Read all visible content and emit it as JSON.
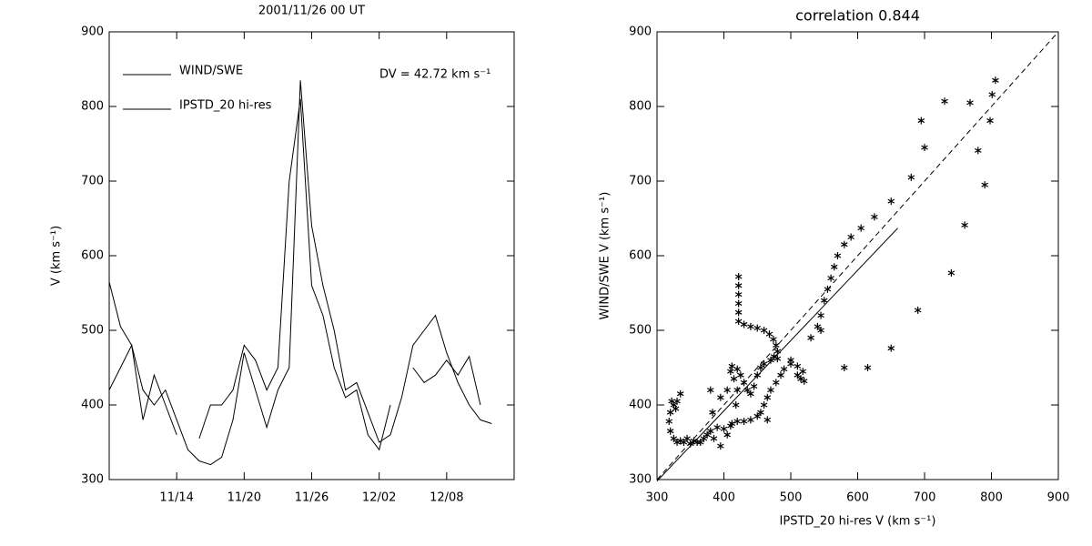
{
  "chart_data": [
    {
      "type": "line",
      "title": "2001/11/26 00 UT",
      "ylabel": "V (km s⁻¹)",
      "annotation": "DV = 42.72 km s⁻¹",
      "x": [
        "11/08",
        "11/09",
        "11/10",
        "11/11",
        "11/12",
        "11/13",
        "11/14",
        "11/15",
        "11/16",
        "11/17",
        "11/18",
        "11/19",
        "11/20",
        "11/21",
        "11/22",
        "11/23",
        "11/24",
        "11/25",
        "11/26",
        "11/27",
        "11/28",
        "11/29",
        "11/30",
        "12/01",
        "12/02",
        "12/03",
        "12/04",
        "12/05",
        "12/06",
        "12/07",
        "12/08",
        "12/09",
        "12/10",
        "12/11",
        "12/12",
        "12/13"
      ],
      "series": [
        {
          "name": "WIND/SWE",
          "color": "#000000",
          "values": [
            565,
            505,
            480,
            420,
            400,
            420,
            380,
            340,
            325,
            320,
            330,
            380,
            470,
            420,
            370,
            420,
            450,
            835,
            640,
            560,
            500,
            420,
            430,
            390,
            350,
            360,
            410,
            480,
            500,
            520,
            470,
            430,
            400,
            380,
            375,
            null
          ]
        },
        {
          "name": "IPSTD_20 hi-res",
          "color": "#000000",
          "values": [
            420,
            450,
            480,
            380,
            440,
            400,
            360,
            null,
            355,
            400,
            400,
            420,
            480,
            460,
            420,
            450,
            700,
            810,
            560,
            520,
            450,
            410,
            420,
            360,
            340,
            400,
            null,
            450,
            430,
            440,
            460,
            440,
            465,
            400,
            null,
            null
          ]
        }
      ],
      "xlim": [
        "11/08",
        "12/14"
      ],
      "xticks": [
        "11/14",
        "11/20",
        "11/26",
        "12/02",
        "12/08"
      ],
      "ylim": [
        300,
        900
      ],
      "yticks": [
        300,
        400,
        500,
        600,
        700,
        800,
        900
      ]
    },
    {
      "type": "scatter",
      "title": "correlation 0.844",
      "xlabel": "IPSTD_20 hi-res V (km s⁻¹)",
      "ylabel": "WIND/SWE V (km s⁻¹)",
      "color": "#000000",
      "x": [
        806,
        801,
        798,
        730,
        695,
        700,
        780,
        768,
        790,
        760,
        740,
        690,
        650,
        615,
        580,
        422,
        422,
        422,
        422,
        422,
        422,
        430,
        440,
        450,
        460,
        468,
        474,
        478,
        480,
        530,
        540,
        545,
        550,
        555,
        560,
        565,
        570,
        580,
        590,
        605,
        625,
        650,
        680,
        510,
        515,
        520,
        518,
        510,
        500,
        490,
        485,
        478,
        470,
        465,
        460,
        455,
        450,
        440,
        430,
        420,
        410,
        400,
        390,
        380,
        370,
        360,
        350,
        340,
        335,
        345,
        355,
        365,
        375,
        385,
        395,
        405,
        412,
        418,
        420,
        415,
        410,
        412,
        420,
        425,
        430,
        435,
        440,
        445,
        450,
        455,
        460,
        470,
        475,
        480,
        322,
        325,
        328,
        330,
        335,
        320,
        318,
        320,
        325,
        330,
        383,
        395,
        405,
        380,
        465,
        500,
        545
      ],
      "y": [
        835,
        816,
        781,
        807,
        781,
        745,
        741,
        805,
        695,
        641,
        577,
        527,
        476,
        450,
        450,
        572,
        560,
        548,
        536,
        524,
        512,
        508,
        505,
        503,
        500,
        495,
        488,
        480,
        472,
        490,
        505,
        520,
        540,
        555,
        570,
        585,
        600,
        615,
        625,
        637,
        652,
        673,
        705,
        440,
        435,
        432,
        445,
        452,
        455,
        448,
        440,
        430,
        420,
        410,
        400,
        390,
        385,
        380,
        378,
        378,
        372,
        368,
        370,
        365,
        355,
        350,
        348,
        350,
        352,
        355,
        352,
        350,
        360,
        355,
        345,
        360,
        375,
        400,
        420,
        435,
        445,
        452,
        448,
        440,
        430,
        420,
        415,
        425,
        440,
        450,
        455,
        460,
        465,
        462,
        405,
        400,
        395,
        405,
        415,
        390,
        378,
        365,
        355,
        350,
        390,
        410,
        420,
        420,
        380,
        460,
        500
      ],
      "xlim": [
        300,
        900
      ],
      "ylim": [
        300,
        900
      ],
      "xticks": [
        300,
        400,
        500,
        600,
        700,
        800,
        900
      ],
      "yticks": [
        300,
        400,
        500,
        600,
        700,
        800,
        900
      ],
      "reference_line": {
        "x": [
          300,
          900
        ],
        "y": [
          300,
          900
        ],
        "style": "dashed"
      },
      "fit_line": {
        "x": [
          300,
          660
        ],
        "y": [
          298,
          637
        ],
        "style": "solid"
      }
    }
  ]
}
